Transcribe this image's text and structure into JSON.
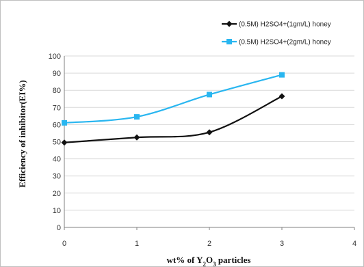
{
  "chart_data": {
    "type": "line",
    "ylabel": "Efficiency of inhibitor(EI%)",
    "xlabel": {
      "parts": [
        "wt% of Y",
        "2",
        "O",
        "3",
        " particles"
      ]
    },
    "xlim": [
      0,
      4
    ],
    "ylim": [
      0,
      100
    ],
    "x_ticks": [
      0,
      1,
      2,
      3,
      4
    ],
    "y_ticks": [
      0,
      10,
      20,
      30,
      40,
      50,
      60,
      70,
      80,
      90,
      100
    ],
    "grid": "horizontal",
    "legend_position": "top-right",
    "series": [
      {
        "name": "(0.5M) H2SO4+(1gm/L) honey",
        "color": "#111111",
        "marker": "diamond",
        "x": [
          0,
          1,
          2,
          3
        ],
        "y": [
          49.5,
          52.5,
          55.5,
          76.5
        ]
      },
      {
        "name": "(0.5M) H2SO4+(2gm/L) honey",
        "color": "#29b6f0",
        "marker": "square",
        "x": [
          0,
          1,
          2,
          3
        ],
        "y": [
          61,
          64.5,
          77.5,
          89
        ]
      }
    ]
  }
}
